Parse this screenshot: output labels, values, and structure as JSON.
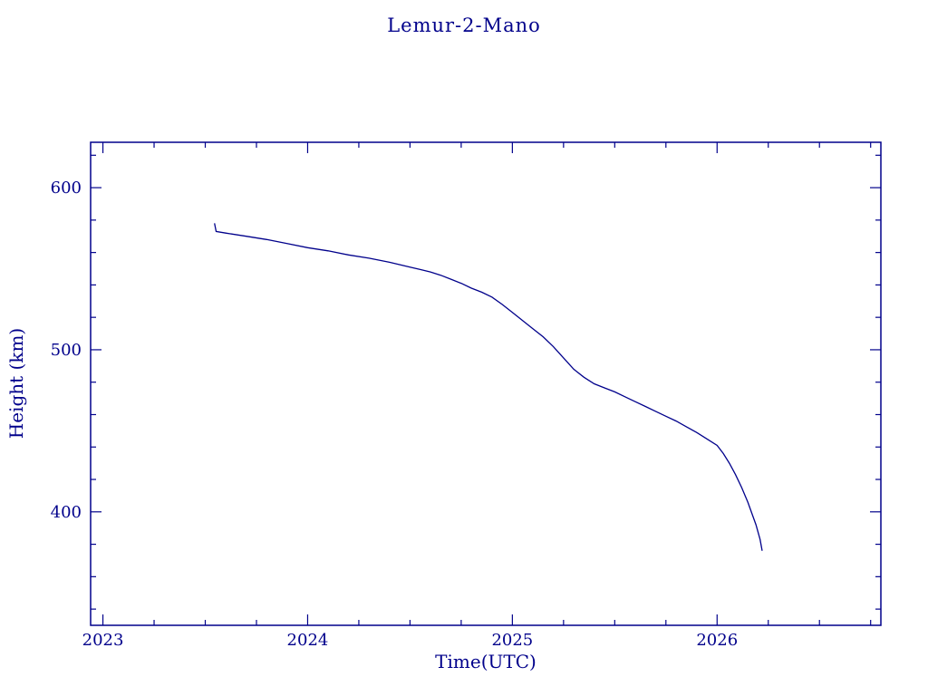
{
  "title": "Lemur-2-Mano",
  "colors": {
    "ink": "#00008B",
    "background": "#ffffff",
    "line": "#00008B"
  },
  "chart_data": {
    "type": "line",
    "title": "Lemur-2-Mano",
    "xlabel": "Time(UTC)",
    "ylabel": "Height (km)",
    "xlim": [
      2022.94,
      2026.8
    ],
    "ylim": [
      330,
      628
    ],
    "xticks": [
      2023,
      2024,
      2025,
      2026
    ],
    "xtick_labels": [
      "2023",
      "2024",
      "2025",
      "2026"
    ],
    "x_minor_step": 0.25,
    "yticks": [
      400,
      500,
      600
    ],
    "ytick_labels": [
      "400",
      "500",
      "600"
    ],
    "y_minor_step": 20,
    "grid": false,
    "legend": false,
    "series": [
      {
        "name": "height_km",
        "color": "#00008B",
        "x": [
          2023.545,
          2023.553,
          2023.6,
          2023.7,
          2023.8,
          2023.9,
          2024.0,
          2024.1,
          2024.2,
          2024.3,
          2024.4,
          2024.5,
          2024.55,
          2024.6,
          2024.65,
          2024.7,
          2024.75,
          2024.8,
          2024.85,
          2024.9,
          2024.95,
          2025.0,
          2025.05,
          2025.1,
          2025.15,
          2025.2,
          2025.25,
          2025.3,
          2025.35,
          2025.4,
          2025.45,
          2025.5,
          2025.55,
          2025.6,
          2025.65,
          2025.7,
          2025.75,
          2025.8,
          2025.85,
          2025.9,
          2025.95,
          2026.0,
          2026.03,
          2026.06,
          2026.09,
          2026.12,
          2026.15,
          2026.17,
          2026.19,
          2026.21,
          2026.22
        ],
        "y": [
          578,
          573,
          572,
          570,
          568,
          565.5,
          563,
          561,
          558.5,
          556.5,
          554,
          551,
          549.5,
          548,
          546,
          543.5,
          541,
          538,
          535.5,
          532.5,
          528,
          523,
          518,
          513,
          508,
          502,
          495,
          488,
          483,
          479,
          476.5,
          474,
          471,
          468,
          465,
          462,
          459,
          456,
          452.5,
          449,
          445,
          441,
          436,
          430,
          423,
          415,
          406,
          399,
          392,
          383,
          376
        ]
      }
    ]
  }
}
